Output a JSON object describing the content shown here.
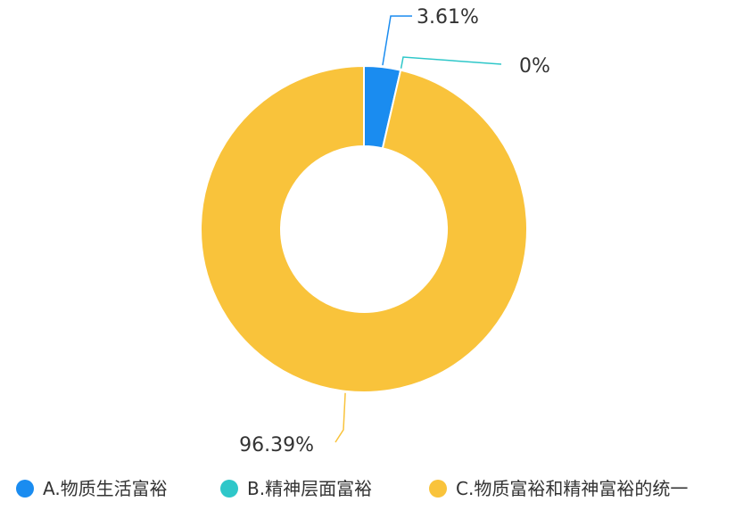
{
  "chart_data": {
    "type": "pie",
    "variant": "donut",
    "categories": [
      "A.物质生活富裕",
      "B.精神层面富裕",
      "C.物质富裕和精神富裕的统一"
    ],
    "values": [
      3.61,
      0,
      96.39
    ],
    "data_labels": [
      "3.61%",
      "0%",
      "96.39%"
    ],
    "colors": [
      "#1a8cf0",
      "#2ec7c9",
      "#f9c33b"
    ],
    "legend_position": "bottom",
    "title": ""
  }
}
